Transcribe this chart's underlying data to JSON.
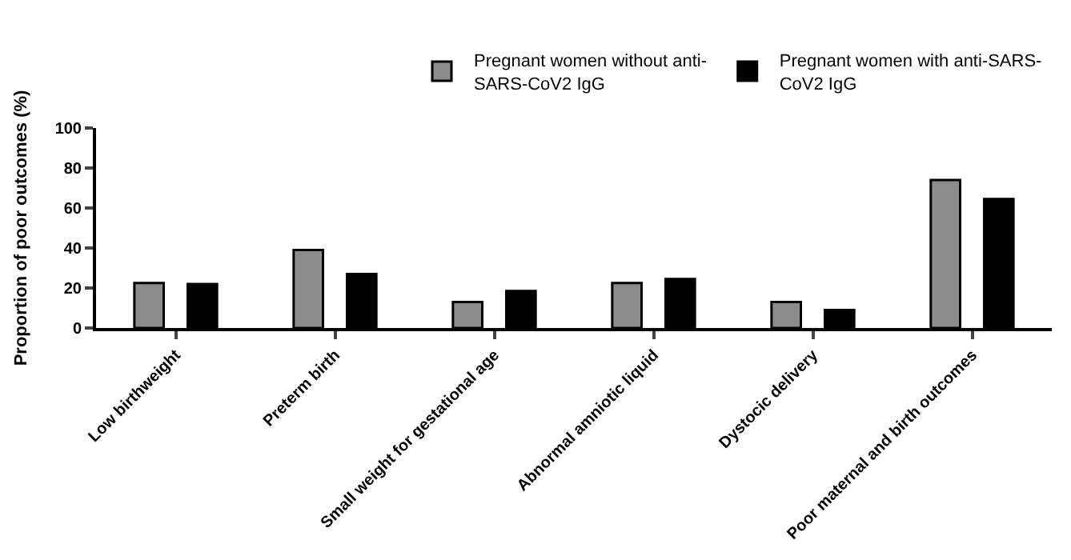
{
  "chart_data": {
    "type": "bar",
    "ylabel": "Proportion of poor outcomes (%)",
    "categories": [
      "Low birthweight",
      "Preterm birth",
      "Small weight for gestational age",
      "Abnormal amniotic liquid",
      "Dystocic delivery",
      "Poor maternal and birth outcomes"
    ],
    "series": [
      {
        "name": "Pregnant women without anti-SARS-CoV2 IgG",
        "color": "#8c8c8c",
        "values": [
          22.5,
          39,
          13,
          22.5,
          13,
          74
        ]
      },
      {
        "name": "Pregnant women with anti-SARS-CoV2 IgG",
        "color": "#000000",
        "values": [
          22,
          27,
          18.5,
          24.5,
          9,
          64.5
        ]
      }
    ],
    "ylim": [
      0,
      100
    ],
    "yticks": [
      0,
      20,
      40,
      60,
      80,
      100
    ],
    "legend": "top right"
  }
}
